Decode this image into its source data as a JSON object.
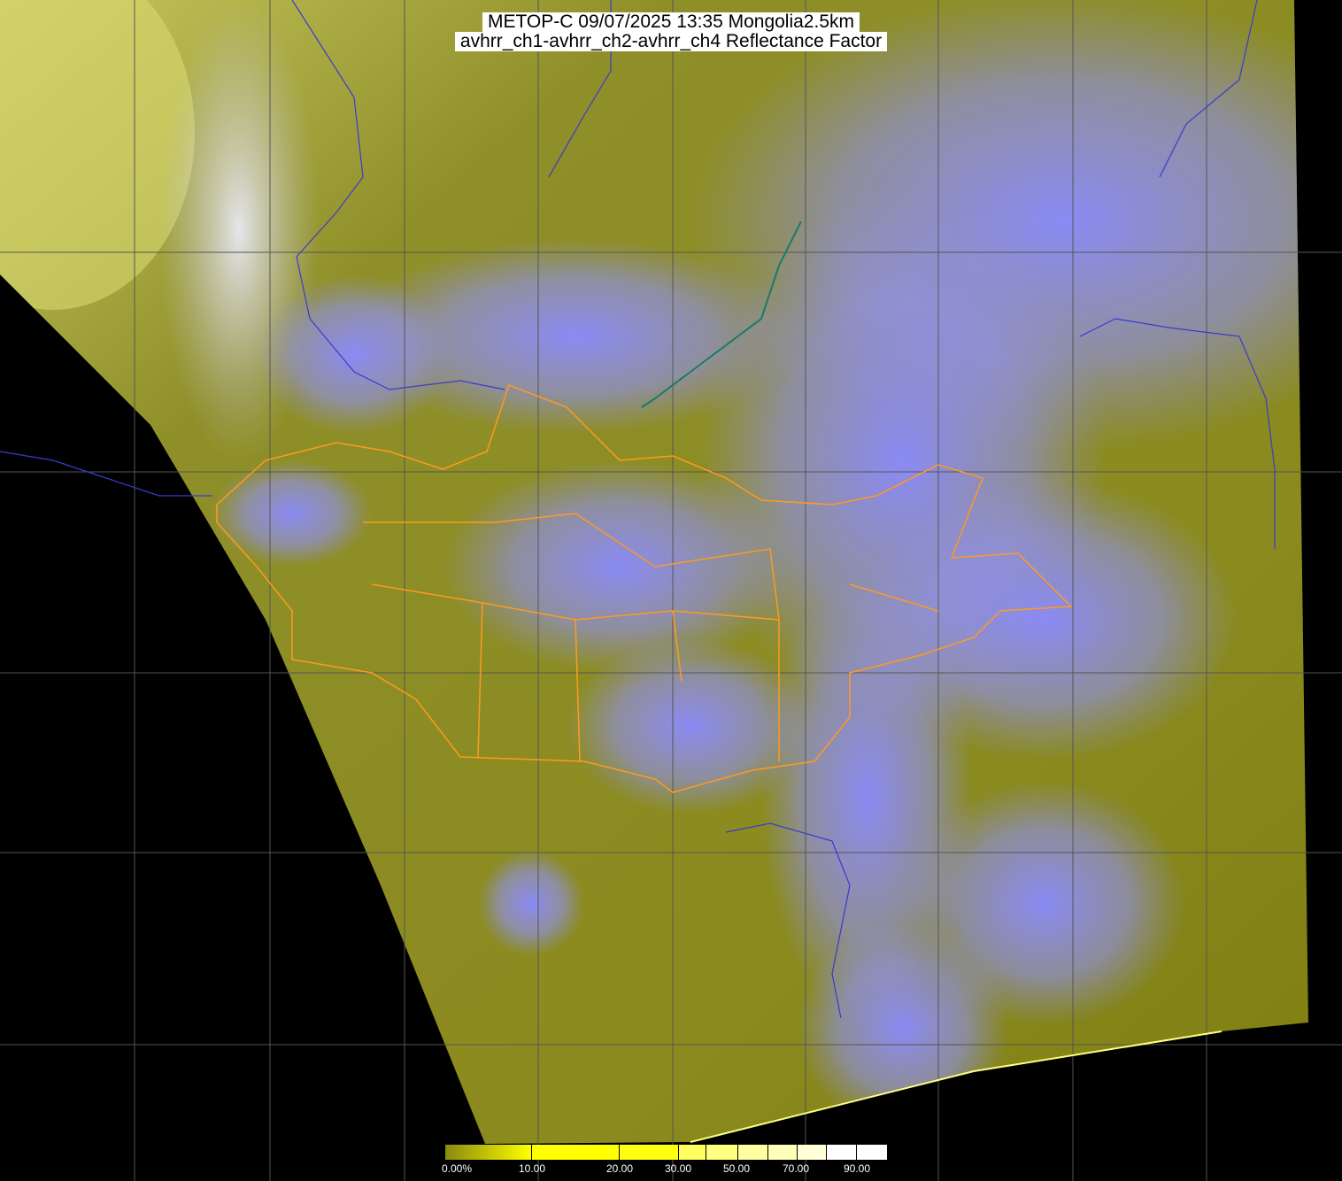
{
  "title": {
    "line1": "METOP-C 09/07/2025 13:35 Mongolia2.5km",
    "line2": "avhrr_ch1-avhrr_ch2-avhrr_ch4 Reflectance Factor"
  },
  "colors": {
    "background": "#000000",
    "land": "#8a8a1c",
    "cloud": "#8c8cff",
    "grid": "#555555",
    "mongolia_border": "#ff9a1e",
    "coastline": "#1a7a6a",
    "country_border": "#3a3ad0"
  },
  "colorbar": {
    "unit": "%",
    "ticks": [
      "0.00%",
      "10.00",
      "20.00",
      "30.00",
      "50.00",
      "70.00",
      "90.00"
    ],
    "segments": [
      {
        "from": 0,
        "to": 10,
        "color": "#b8b800"
      },
      {
        "from": 10,
        "to": 20,
        "color": "#ffff00"
      },
      {
        "from": 20,
        "to": 30,
        "color": "#ffff10"
      },
      {
        "from": 30,
        "to": 40,
        "color": "#ffff60"
      },
      {
        "from": 40,
        "to": 50,
        "color": "#ffff80"
      },
      {
        "from": 50,
        "to": 60,
        "color": "#ffffa0"
      },
      {
        "from": 60,
        "to": 70,
        "color": "#ffffb8"
      },
      {
        "from": 70,
        "to": 80,
        "color": "#ffffd8"
      },
      {
        "from": 80,
        "to": 90,
        "color": "#ffffff"
      },
      {
        "from": 90,
        "to": 100,
        "color": "#ffffff"
      }
    ]
  }
}
